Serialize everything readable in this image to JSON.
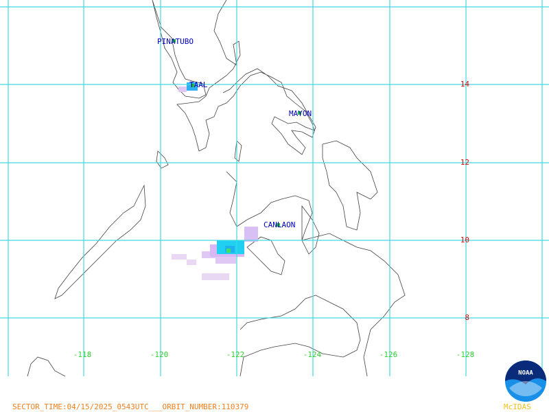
{
  "volcanoes": [
    {
      "label": "PINATUBO"
    },
    {
      "label": "TAAL"
    },
    {
      "label": "MAYON"
    },
    {
      "label": "CANLAON"
    }
  ],
  "latitude_labels": [
    14,
    12,
    10,
    8
  ],
  "longitude_labels": [
    -118,
    -120,
    -122,
    -124,
    -126,
    -128
  ],
  "footer": {
    "sector_info": "SECTOR_TIME:04/15/2025_0543UTC___ORBIT_NUMBER:110379",
    "logo": "NOAA",
    "software": "McIDAS"
  }
}
